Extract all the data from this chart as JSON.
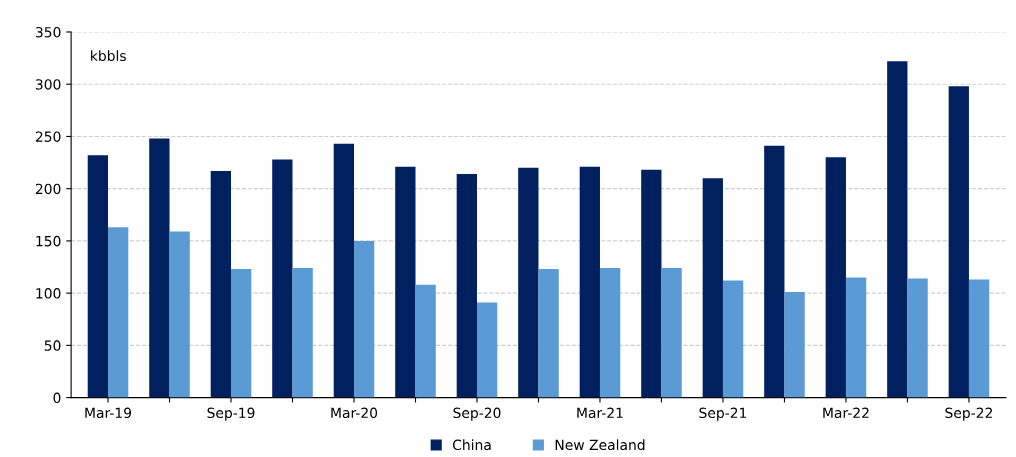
{
  "chart_data": {
    "type": "bar",
    "categories": [
      "Mar-19",
      null,
      "Sep-19",
      null,
      "Mar-20",
      null,
      "Sep-20",
      null,
      "Mar-21",
      null,
      "Sep-21",
      null,
      "Mar-22",
      null,
      "Sep-22"
    ],
    "series": [
      {
        "name": "China",
        "color": "#002060",
        "values": [
          232,
          248,
          217,
          228,
          243,
          221,
          214,
          220,
          221,
          218,
          210,
          241,
          230,
          322,
          298
        ]
      },
      {
        "name": "New Zealand",
        "color": "#5b9bd5",
        "values": [
          163,
          159,
          123,
          124,
          150,
          108,
          91,
          123,
          124,
          124,
          112,
          101,
          115,
          114,
          113
        ]
      }
    ],
    "annotations": [
      "kbbls"
    ],
    "ylim": [
      0,
      350
    ],
    "yticks": [
      0,
      50,
      100,
      150,
      200,
      250,
      300,
      350
    ],
    "grid": "y",
    "legend": "bottom"
  }
}
